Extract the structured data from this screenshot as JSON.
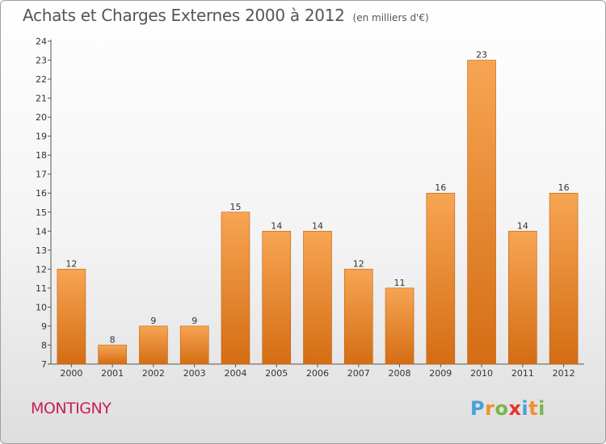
{
  "chart_data": {
    "type": "bar",
    "title": "Achats et Charges Externes 2000 à 2012",
    "subtitle": "(en milliers d'€)",
    "categories": [
      "2000",
      "2001",
      "2002",
      "2003",
      "2004",
      "2005",
      "2006",
      "2007",
      "2008",
      "2009",
      "2010",
      "2011",
      "2012"
    ],
    "values": [
      12,
      8,
      9,
      9,
      15,
      14,
      14,
      12,
      11,
      16,
      23,
      14,
      16
    ],
    "ylim": [
      7,
      24
    ],
    "yticks": [
      7,
      8,
      9,
      10,
      11,
      12,
      13,
      14,
      15,
      16,
      17,
      18,
      19,
      20,
      21,
      22,
      23,
      24
    ],
    "grid": false,
    "bar_color": "#f0913a",
    "xlabel": "",
    "ylabel": ""
  },
  "footer": {
    "commune": "MONTIGNY",
    "logo_text": "Proxiti",
    "logo_colors": [
      "#4aa0d8",
      "#f0912a",
      "#7ab648",
      "#e6322c",
      "#4aa0d8",
      "#f0912a",
      "#7ab648"
    ]
  }
}
